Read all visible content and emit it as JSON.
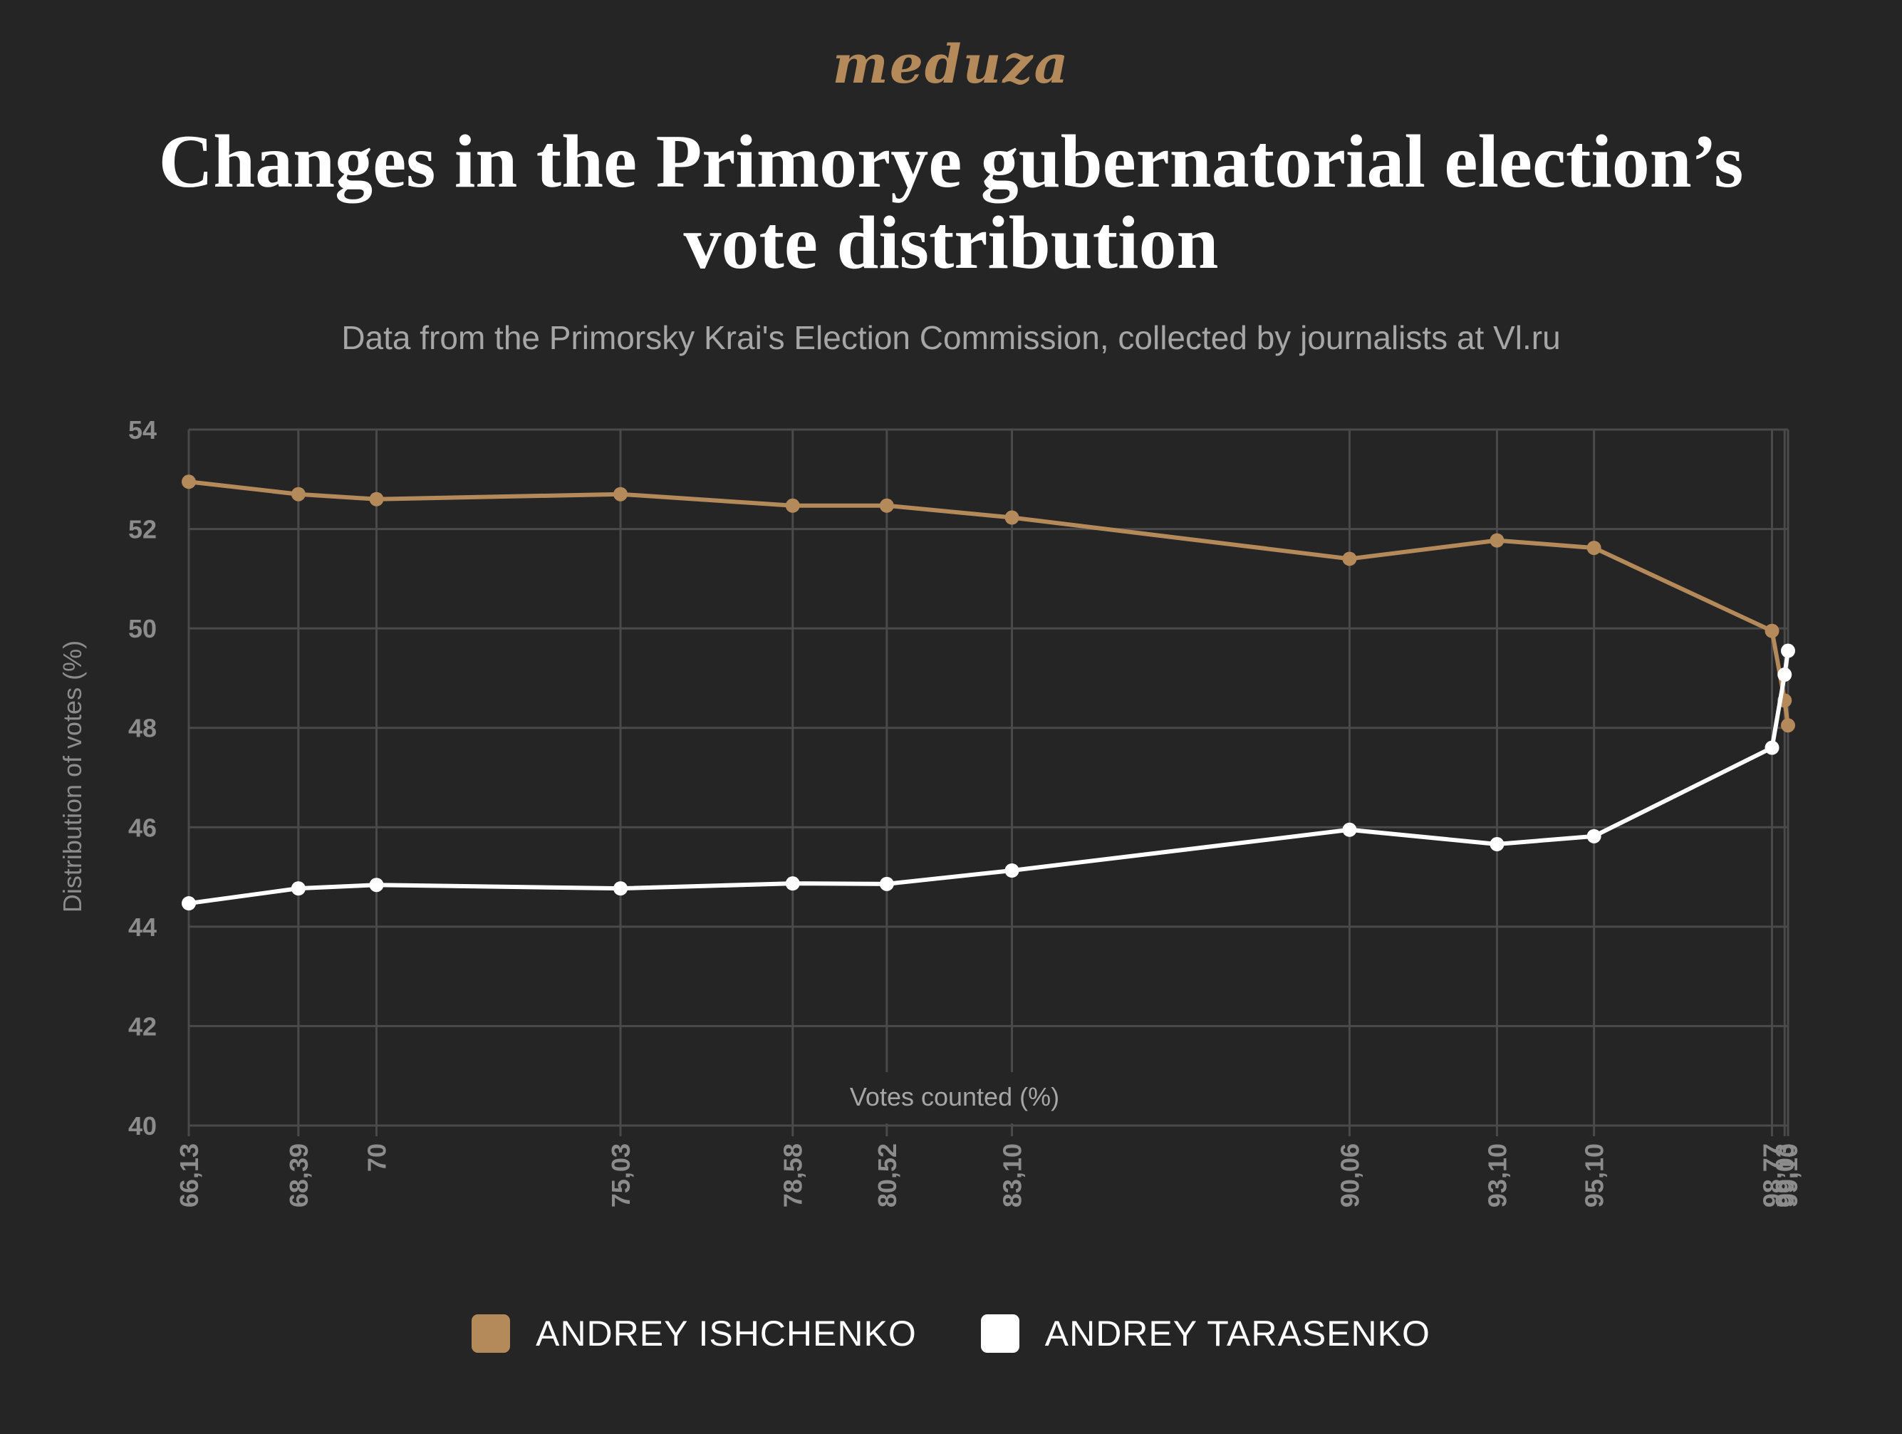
{
  "logo": "meduza",
  "title": "Changes in the Primorye gubernatorial election’s vote distribution",
  "subtitle": "Data from the Primorsky Krai's Election Commission, collected by journalists at Vl.ru",
  "colors": {
    "background": "#252525",
    "grid": "#4a4a4a",
    "axis_text": "#8c8c8c",
    "ishchenko": "#b58a5a",
    "tarasenko": "#ffffff"
  },
  "chart_data": {
    "type": "line",
    "title": "Changes in the Primorye gubernatorial election’s vote distribution",
    "subtitle": "Data from the Primorsky Krai's Election Commission, collected by journalists at Vl.ru",
    "xlabel": "Votes counted (%)",
    "ylabel": "Distribution of votes (%)",
    "ylim": [
      40,
      54
    ],
    "yticks": [
      40,
      42,
      44,
      46,
      48,
      50,
      52,
      54
    ],
    "xlim": [
      66.13,
      99.1
    ],
    "x": [
      66.13,
      68.39,
      70,
      75.03,
      78.58,
      80.52,
      83.1,
      90.06,
      93.1,
      95.1,
      98.77,
      99.03,
      99.1
    ],
    "x_tick_labels": [
      "66,13",
      "68,39",
      "70",
      "75,03",
      "78,58",
      "80,52",
      "83,10",
      "90,06",
      "93,10",
      "95,10",
      "98,77",
      "99,03",
      "99,10"
    ],
    "grid": true,
    "legend_position": "bottom",
    "series": [
      {
        "name": "ANDREY ISHCHENKO",
        "color": "#b58a5a",
        "values": [
          52.95,
          52.7,
          52.6,
          52.7,
          52.47,
          52.47,
          52.23,
          51.4,
          51.77,
          51.62,
          49.95,
          48.55,
          48.05
        ]
      },
      {
        "name": "ANDREY TARASENKO",
        "color": "#ffffff",
        "values": [
          44.47,
          44.77,
          44.84,
          44.77,
          44.87,
          44.86,
          45.13,
          45.95,
          45.66,
          45.82,
          47.6,
          49.07,
          49.55
        ]
      }
    ]
  }
}
